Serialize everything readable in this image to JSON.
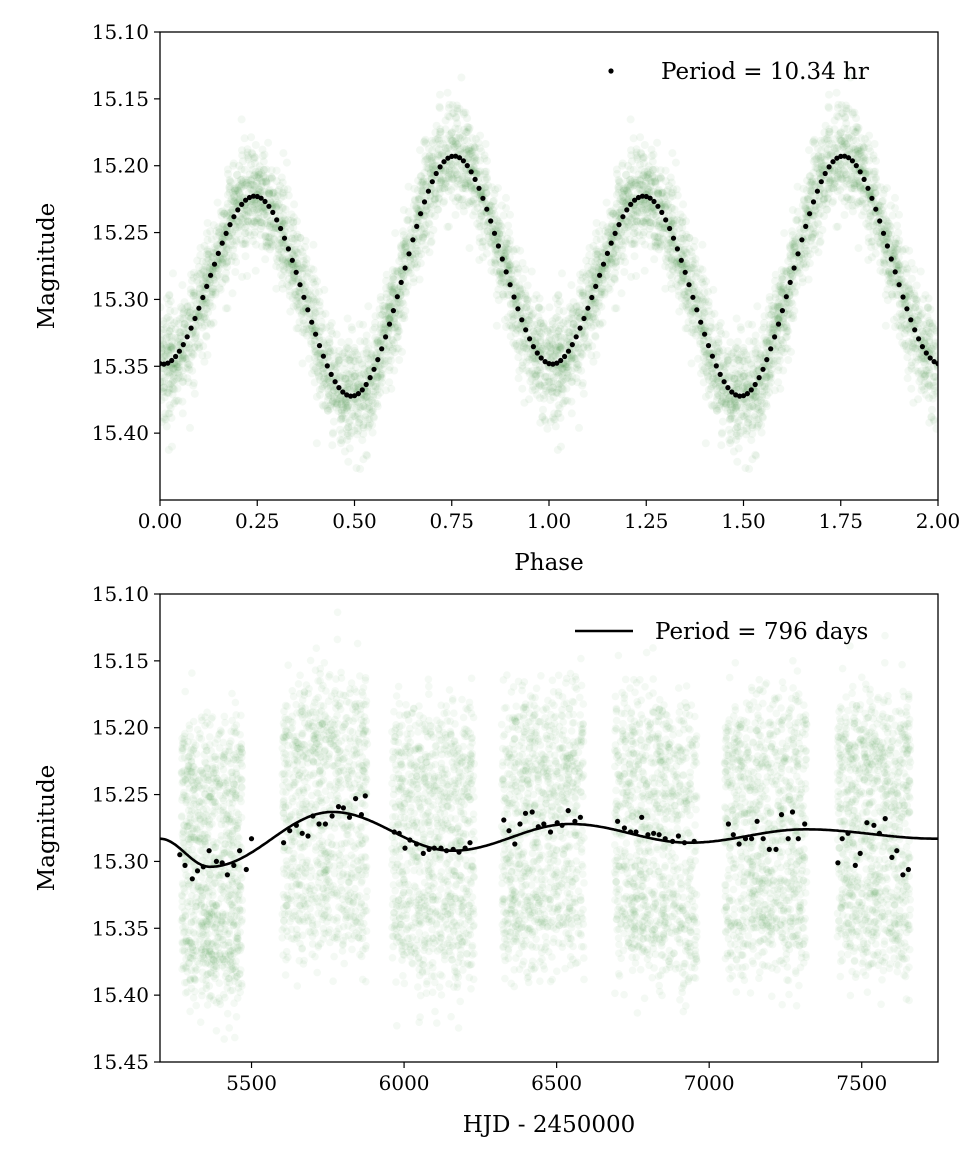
{
  "chart_data": [
    {
      "type": "scatter",
      "title": "",
      "xlabel": "Phase",
      "ylabel": "Magnitude",
      "xlim": [
        0.0,
        2.0
      ],
      "ylim": [
        15.45,
        15.1
      ],
      "y_inverted": true,
      "xticks": [
        "0.00",
        "0.25",
        "0.50",
        "0.75",
        "1.00",
        "1.25",
        "1.50",
        "1.75",
        "2.00"
      ],
      "yticks": [
        "15.10",
        "15.15",
        "15.20",
        "15.25",
        "15.30",
        "15.35",
        "15.40"
      ],
      "legend": {
        "label": "Period = 10.34 hr",
        "marker": "dot",
        "placement": "top-right"
      },
      "binned_model": {
        "description": "phase-binned mean magnitude",
        "bin_width": 0.01,
        "mean": 15.284,
        "cos_2phi": -0.012,
        "sin_2phi": 0.015,
        "cos_4phi": 0.076,
        "extrema": [
          [
            0.0,
            15.348
          ],
          [
            0.25,
            15.223
          ],
          [
            0.5,
            15.372
          ],
          [
            0.75,
            15.193
          ],
          [
            1.0,
            15.348
          ]
        ]
      },
      "raw_scatter": {
        "color": "#2e8b2e",
        "scatter_sigma": 0.02,
        "n_points_per_cycle": 3000
      }
    },
    {
      "type": "scatter",
      "title": "",
      "xlabel": "HJD - 2450000",
      "ylabel": "Magnitude",
      "xlim": [
        5200,
        7750
      ],
      "ylim": [
        15.45,
        15.1
      ],
      "y_inverted": true,
      "xticks": [
        "5500",
        "6000",
        "6500",
        "7000",
        "7500"
      ],
      "yticks": [
        "15.10",
        "15.15",
        "15.20",
        "15.25",
        "15.30",
        "15.35",
        "15.40",
        "15.45"
      ],
      "legend": {
        "label": "Period = 796 days",
        "marker": "line",
        "placement": "top-right"
      },
      "fit_curve_knots": [
        [
          5200,
          15.283
        ],
        [
          5363,
          15.304
        ],
        [
          5765,
          15.263
        ],
        [
          6158,
          15.292
        ],
        [
          6545,
          15.272
        ],
        [
          6935,
          15.286
        ],
        [
          7315,
          15.276
        ],
        [
          7748,
          15.283
        ]
      ],
      "binned_points": [
        [
          5265,
          15.295
        ],
        [
          5282,
          15.303
        ],
        [
          5306,
          15.313
        ],
        [
          5323,
          15.307
        ],
        [
          5342,
          15.304
        ],
        [
          5361,
          15.292
        ],
        [
          5385,
          15.3
        ],
        [
          5404,
          15.301
        ],
        [
          5421,
          15.31
        ],
        [
          5442,
          15.303
        ],
        [
          5461,
          15.292
        ],
        [
          5483,
          15.306
        ],
        [
          5500,
          15.283
        ],
        [
          5605,
          15.286
        ],
        [
          5625,
          15.277
        ],
        [
          5647,
          15.273
        ],
        [
          5666,
          15.279
        ],
        [
          5685,
          15.281
        ],
        [
          5701,
          15.266
        ],
        [
          5721,
          15.272
        ],
        [
          5742,
          15.272
        ],
        [
          5764,
          15.266
        ],
        [
          5785,
          15.259
        ],
        [
          5801,
          15.26
        ],
        [
          5821,
          15.267
        ],
        [
          5841,
          15.253
        ],
        [
          5860,
          15.265
        ],
        [
          5873,
          15.251
        ],
        [
          5968,
          15.278
        ],
        [
          5984,
          15.279
        ],
        [
          6003,
          15.29
        ],
        [
          6019,
          15.284
        ],
        [
          6041,
          15.287
        ],
        [
          6063,
          15.294
        ],
        [
          6082,
          15.291
        ],
        [
          6099,
          15.29
        ],
        [
          6121,
          15.29
        ],
        [
          6139,
          15.292
        ],
        [
          6161,
          15.291
        ],
        [
          6180,
          15.293
        ],
        [
          6200,
          15.29
        ],
        [
          6216,
          15.286
        ],
        [
          6327,
          15.269
        ],
        [
          6344,
          15.277
        ],
        [
          6363,
          15.287
        ],
        [
          6380,
          15.272
        ],
        [
          6398,
          15.264
        ],
        [
          6420,
          15.263
        ],
        [
          6440,
          15.274
        ],
        [
          6458,
          15.272
        ],
        [
          6480,
          15.278
        ],
        [
          6502,
          15.271
        ],
        [
          6518,
          15.273
        ],
        [
          6538,
          15.262
        ],
        [
          6560,
          15.27
        ],
        [
          6578,
          15.267
        ],
        [
          6700,
          15.27
        ],
        [
          6722,
          15.275
        ],
        [
          6742,
          15.278
        ],
        [
          6760,
          15.278
        ],
        [
          6779,
          15.267
        ],
        [
          6799,
          15.28
        ],
        [
          6818,
          15.279
        ],
        [
          6836,
          15.28
        ],
        [
          6856,
          15.283
        ],
        [
          6880,
          15.285
        ],
        [
          6899,
          15.281
        ],
        [
          6919,
          15.286
        ],
        [
          6951,
          15.285
        ],
        [
          7063,
          15.272
        ],
        [
          7079,
          15.28
        ],
        [
          7098,
          15.287
        ],
        [
          7119,
          15.283
        ],
        [
          7139,
          15.283
        ],
        [
          7157,
          15.27
        ],
        [
          7177,
          15.283
        ],
        [
          7197,
          15.291
        ],
        [
          7219,
          15.291
        ],
        [
          7237,
          15.265
        ],
        [
          7259,
          15.283
        ],
        [
          7273,
          15.263
        ],
        [
          7292,
          15.283
        ],
        [
          7313,
          15.272
        ],
        [
          7422,
          15.301
        ],
        [
          7436,
          15.283
        ],
        [
          7455,
          15.279
        ],
        [
          7479,
          15.303
        ],
        [
          7495,
          15.294
        ],
        [
          7517,
          15.271
        ],
        [
          7540,
          15.273
        ],
        [
          7558,
          15.279
        ],
        [
          7577,
          15.268
        ],
        [
          7599,
          15.297
        ],
        [
          7615,
          15.292
        ],
        [
          7635,
          15.31
        ],
        [
          7653,
          15.306
        ]
      ],
      "raw_seasons": [
        [
          5270,
          5470
        ],
        [
          5600,
          5880
        ],
        [
          5960,
          6230
        ],
        [
          6320,
          6590
        ],
        [
          6690,
          6960
        ],
        [
          7050,
          7320
        ],
        [
          7420,
          7660
        ]
      ],
      "raw_scatter": {
        "color": "#2e8b2e",
        "scatter_sigma": 0.022,
        "n_points_per_season": 1000
      }
    }
  ]
}
